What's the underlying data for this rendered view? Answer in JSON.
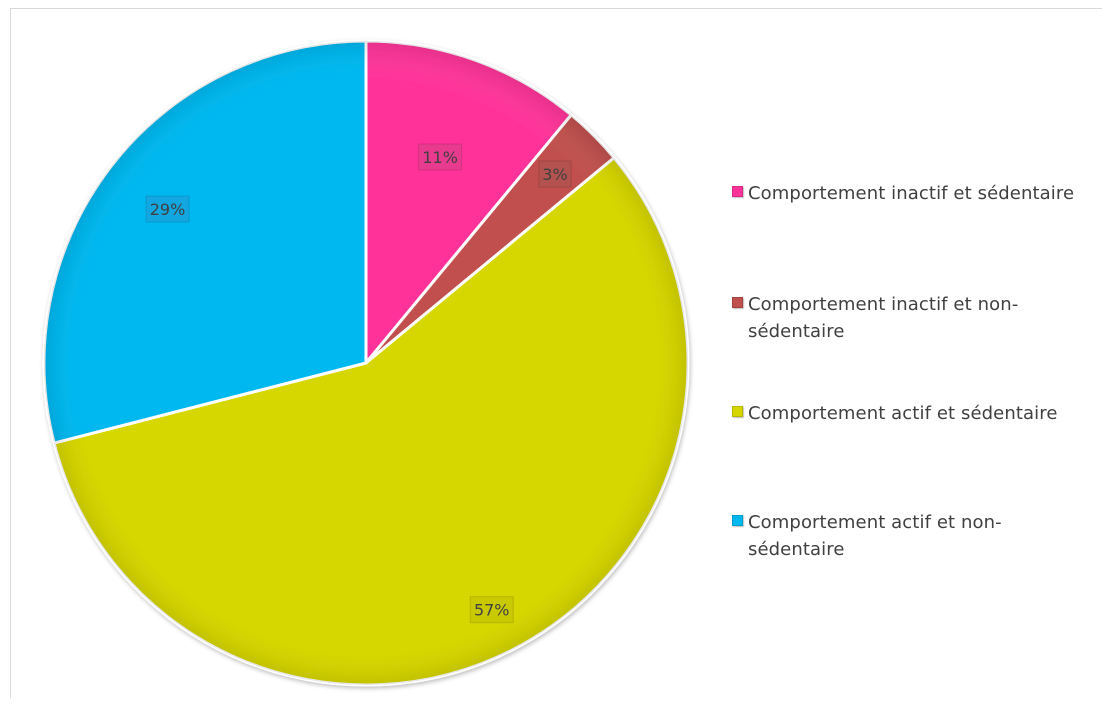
{
  "chart_data": {
    "type": "pie",
    "title": "",
    "categories": [
      "Comportement inactif et sédentaire",
      "Comportement inactif et non-sédentaire",
      "Comportement actif et sédentaire",
      "Comportement actif et non-sédentaire"
    ],
    "values": [
      11,
      3,
      57,
      29
    ],
    "labels": [
      "11%",
      "3%",
      "57%",
      "29%"
    ],
    "colors": [
      "#ff3399",
      "#c0504d",
      "#d6d600",
      "#00b8f0"
    ],
    "legend_position": "right"
  },
  "legend": {
    "items": [
      {
        "label": "Comportement inactif et sédentaire",
        "color": "#ff3399"
      },
      {
        "label": "Comportement inactif et non-sédentaire",
        "color": "#c0504d"
      },
      {
        "label": "Comportement actif et sédentaire",
        "color": "#d6d600"
      },
      {
        "label": "Comportement actif et non-sédentaire",
        "color": "#00b8f0"
      }
    ]
  }
}
